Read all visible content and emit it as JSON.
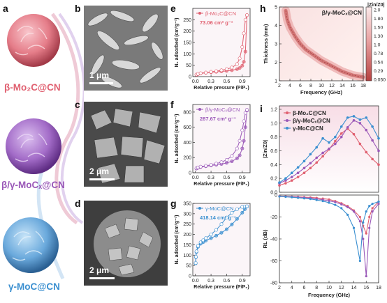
{
  "panel_labels": {
    "a": "a",
    "b": "b",
    "c": "c",
    "d": "d",
    "e": "e",
    "f": "f",
    "g": "g",
    "h": "h",
    "i": "i"
  },
  "materials": [
    {
      "name": "β-Mo₂C@CN",
      "color": "#e06070"
    },
    {
      "name": "β/γ-MoCₓ@CN",
      "color": "#9a58b8"
    },
    {
      "name": "γ-MoC@CN",
      "color": "#3a8fd0"
    }
  ],
  "sem_scalebars": {
    "b": "1 μm",
    "c": "2 μm",
    "d": "2 μm"
  },
  "chart_data": [
    {
      "panel": "e",
      "type": "line",
      "series": [
        {
          "name": "β-Mo₂C@CN",
          "color": "#e06070",
          "x": [
            0.02,
            0.05,
            0.1,
            0.2,
            0.3,
            0.4,
            0.5,
            0.6,
            0.7,
            0.8,
            0.85,
            0.9,
            0.93,
            0.96,
            0.99
          ],
          "adsorption": [
            8,
            11,
            14,
            17,
            19,
            21,
            23,
            25,
            28,
            33,
            38,
            48,
            65,
            110,
            270
          ],
          "desorption": [
            9,
            12,
            15,
            18,
            21,
            24,
            28,
            33,
            40,
            55,
            80,
            130,
            190,
            250,
            270
          ]
        }
      ],
      "annotation": "73.06 cm² g⁻¹",
      "xlabel": "Relative pressure (P/P₀)",
      "ylabel": "N₂ adsorbed (cm³g⁻¹)",
      "xlim": [
        -0.05,
        1.05
      ],
      "ylim": [
        0,
        300
      ],
      "xticks": [
        0.0,
        0.3,
        0.6,
        0.9
      ],
      "yticks": [
        0,
        50,
        100,
        150,
        200,
        250
      ]
    },
    {
      "panel": "f",
      "type": "line",
      "series": [
        {
          "name": "β/γ-MoCₓ@CN",
          "color": "#9a58b8",
          "x": [
            0.02,
            0.05,
            0.1,
            0.2,
            0.3,
            0.4,
            0.5,
            0.6,
            0.7,
            0.8,
            0.85,
            0.9,
            0.93,
            0.96,
            0.99
          ],
          "adsorption": [
            55,
            65,
            75,
            85,
            95,
            105,
            115,
            130,
            150,
            190,
            230,
            320,
            420,
            600,
            820
          ],
          "desorption": [
            60,
            70,
            80,
            92,
            105,
            120,
            140,
            170,
            220,
            320,
            420,
            560,
            680,
            790,
            830
          ]
        }
      ],
      "annotation": "287.67 cm² g⁻¹",
      "xlabel": "Relative pressure (P/P₀)",
      "ylabel": "N₂ adsorbed (cm³g⁻¹)",
      "xlim": [
        -0.05,
        1.05
      ],
      "ylim": [
        0,
        900
      ],
      "xticks": [
        0.0,
        0.3,
        0.6,
        0.9
      ],
      "yticks": [
        0,
        200,
        400,
        600,
        800
      ]
    },
    {
      "panel": "g",
      "type": "line",
      "series": [
        {
          "name": "γ-MoC@CN",
          "color": "#3a8fd0",
          "x": [
            0.005,
            0.01,
            0.02,
            0.05,
            0.1,
            0.15,
            0.2,
            0.3,
            0.4,
            0.5,
            0.6,
            0.7,
            0.8,
            0.9,
            0.95,
            0.99
          ],
          "adsorption": [
            60,
            90,
            115,
            140,
            155,
            163,
            170,
            182,
            194,
            208,
            225,
            248,
            275,
            305,
            322,
            335
          ],
          "desorption": [
            62,
            92,
            118,
            145,
            162,
            172,
            182,
            200,
            222,
            250,
            282,
            305,
            322,
            333,
            335,
            336
          ]
        }
      ],
      "annotation": "418.14 cm³ g⁻¹",
      "xlabel": "Relative pressure (P/P₀)",
      "ylabel": "N₂ adsorbed (cm³g⁻¹)",
      "xlim": [
        -0.05,
        1.05
      ],
      "ylim": [
        0,
        350
      ],
      "xticks": [
        0.0,
        0.3,
        0.6,
        0.9
      ],
      "yticks": [
        0,
        50,
        100,
        150,
        200,
        250,
        300,
        350
      ]
    },
    {
      "panel": "h",
      "type": "heatmap",
      "title": "β/γ-MoCₓ@CN",
      "xlabel": "Frequency (GHz)",
      "ylabel": "Thickness (mm)",
      "xlim": [
        2,
        18
      ],
      "ylim": [
        1,
        5
      ],
      "xticks": [
        2,
        4,
        6,
        8,
        10,
        12,
        14,
        16,
        18
      ],
      "yticks": [
        1,
        2,
        3,
        4,
        5
      ],
      "colorbar_label": "|Zin/Z0|",
      "colorbar_ticks": [
        2.0,
        1.8,
        1.5,
        1.3,
        1.0,
        0.78,
        0.54,
        0.29,
        0.05
      ],
      "ridge": [
        [
          3.2,
          4.8
        ],
        [
          3.5,
          4.3
        ],
        [
          4,
          3.9
        ],
        [
          5,
          3.4
        ],
        [
          6,
          3.0
        ],
        [
          7,
          2.7
        ],
        [
          8,
          2.5
        ],
        [
          9,
          2.3
        ],
        [
          10,
          2.1
        ],
        [
          11,
          1.95
        ],
        [
          12,
          1.8
        ],
        [
          13,
          1.65
        ],
        [
          14,
          1.5
        ],
        [
          15,
          1.4
        ],
        [
          16,
          1.3
        ],
        [
          17,
          1.25
        ],
        [
          18,
          1.2
        ]
      ]
    },
    {
      "panel": "i-top",
      "type": "line",
      "ylabel": "|Zin/Z0|",
      "xlim": [
        2,
        18
      ],
      "ylim": [
        0,
        1.25
      ],
      "yticks": [
        0.0,
        0.2,
        0.4,
        0.6,
        0.8,
        1.0,
        1.2
      ],
      "x": [
        2,
        3,
        4,
        5,
        6,
        7,
        8,
        9,
        10,
        11,
        12,
        13,
        14,
        15,
        16,
        17,
        18
      ],
      "series": [
        {
          "name": "β-Mo₂C@CN",
          "color": "#e06070",
          "values": [
            0.1,
            0.13,
            0.17,
            0.22,
            0.28,
            0.35,
            0.43,
            0.52,
            0.62,
            0.74,
            0.85,
            0.92,
            0.84,
            0.7,
            0.58,
            0.48,
            0.4
          ]
        },
        {
          "name": "β/γ-MoCₓ@CN",
          "color": "#9a58b8",
          "values": [
            0.13,
            0.17,
            0.22,
            0.28,
            0.35,
            0.42,
            0.5,
            0.57,
            0.63,
            0.7,
            0.8,
            0.94,
            1.04,
            1.0,
            0.9,
            0.75,
            0.6
          ]
        },
        {
          "name": "γ-MoC@CN",
          "color": "#3a8fd0",
          "values": [
            0.14,
            0.2,
            0.28,
            0.36,
            0.45,
            0.55,
            0.65,
            0.78,
            0.72,
            0.8,
            0.95,
            1.08,
            1.1,
            1.05,
            1.08,
            0.95,
            0.78
          ]
        }
      ]
    },
    {
      "panel": "i-bottom",
      "type": "line",
      "xlabel": "Frequency (GHz)",
      "ylabel": "RL (dB)",
      "xlim": [
        2,
        18
      ],
      "ylim": [
        -80,
        0
      ],
      "xticks": [
        2,
        4,
        6,
        8,
        10,
        12,
        14,
        16,
        18
      ],
      "yticks": [
        0,
        -20,
        -40,
        -60,
        -80
      ],
      "x": [
        2,
        3,
        4,
        5,
        6,
        7,
        8,
        9,
        10,
        11,
        12,
        13,
        14,
        15,
        15.5,
        16,
        16.5,
        17,
        18
      ],
      "series": [
        {
          "name": "β-Mo₂C@CN",
          "color": "#e06070",
          "values": [
            -1,
            -1.2,
            -1.4,
            -1.6,
            -1.9,
            -2.2,
            -2.6,
            -3.2,
            -4,
            -5.5,
            -7.5,
            -10,
            -14,
            -20,
            -28,
            -35,
            -20,
            -12,
            -6
          ]
        },
        {
          "name": "β/γ-MoCₓ@CN",
          "color": "#9a58b8",
          "values": [
            -1.2,
            -1.4,
            -1.7,
            -2,
            -2.4,
            -2.9,
            -3.5,
            -4.3,
            -5.3,
            -6.5,
            -8.5,
            -11,
            -15,
            -24,
            -40,
            -74,
            -30,
            -15,
            -8
          ]
        },
        {
          "name": "γ-MoC@CN",
          "color": "#3a8fd0",
          "values": [
            -1.3,
            -1.6,
            -2,
            -2.5,
            -3,
            -3.6,
            -4.5,
            -5.5,
            -7,
            -9,
            -12,
            -18,
            -30,
            -60,
            -25,
            -15,
            -10,
            -8,
            -6
          ]
        }
      ]
    }
  ]
}
